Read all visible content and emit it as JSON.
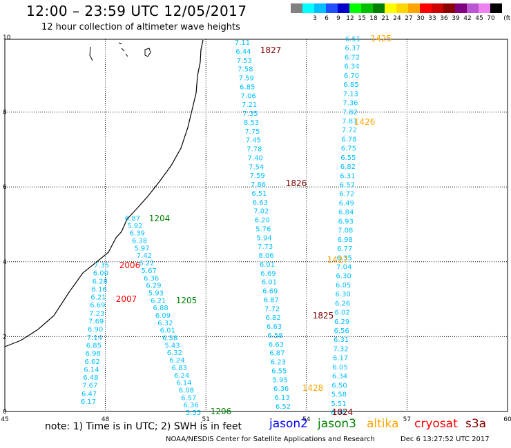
{
  "header": {
    "title": "12:00 – 23:59 UTC 12/05/2017",
    "subtitle": "12 hour collection of altimeter wave heights"
  },
  "legend": {
    "unit": "(ft)",
    "bins": [
      {
        "label": "",
        "color": "#808080"
      },
      {
        "label": "3",
        "color": "#00ffff"
      },
      {
        "label": "6",
        "color": "#00bfff"
      },
      {
        "label": "9",
        "color": "#1f4fff"
      },
      {
        "label": "12",
        "color": "#0000cd"
      },
      {
        "label": "15",
        "color": "#00ff00"
      },
      {
        "label": "18",
        "color": "#00c000"
      },
      {
        "label": "21",
        "color": "#008000"
      },
      {
        "label": "24",
        "color": "#ffff00"
      },
      {
        "label": "27",
        "color": "#ffd700"
      },
      {
        "label": "30",
        "color": "#ffa500"
      },
      {
        "label": "33",
        "color": "#ff0000"
      },
      {
        "label": "36",
        "color": "#cc0000"
      },
      {
        "label": "39",
        "color": "#8b0000"
      },
      {
        "label": "42",
        "color": "#800080"
      },
      {
        "label": "45",
        "color": "#ba55d3"
      },
      {
        "label": "70",
        "color": "#ee82ee"
      },
      {
        "label": "",
        "color": "#000000"
      }
    ]
  },
  "axes": {
    "x_ticks": [
      "45",
      "48",
      "51",
      "54",
      "57",
      "60"
    ],
    "y_ticks": [
      "0",
      "2",
      "4",
      "6",
      "8",
      "10"
    ]
  },
  "colors": {
    "value_text": "#00bfff",
    "jason2": "#0000ff",
    "jason3": "#008000",
    "altika": "#ffa500",
    "cryosat": "#ff0000",
    "s3a": "#800000"
  },
  "tracks": [
    {
      "id": "t1425",
      "x": [
        6.51,
        6.37,
        6.72,
        6.34,
        6.7,
        6.85,
        7.13,
        7.36,
        7.82,
        7.81,
        7.72,
        6.78,
        6.75,
        6.55,
        6.82,
        6.31,
        6.57,
        6.72,
        6.49,
        6.84,
        6.93,
        7.08,
        6.98,
        6.77,
        6.35,
        7.04,
        6.3,
        6.05,
        6.3,
        6.26,
        6.02,
        6.29,
        6.56,
        6.31,
        7.32,
        6.17,
        6.05,
        6.34,
        6.5,
        5.58,
        5.51,
        6.4
      ]
    },
    {
      "id": "t1827",
      "x": [
        7.11,
        6.44,
        7.53,
        7.58,
        7.59,
        6.85,
        7.06,
        7.21,
        7.35,
        8.53,
        7.75,
        7.45,
        7.78,
        7.4,
        7.54,
        7.59,
        7.86,
        6.51,
        6.63,
        7.02,
        6.2,
        5.76,
        5.94,
        7.73,
        8.06,
        6.01,
        6.69,
        6.01,
        6.69,
        6.87,
        7.72,
        6.82,
        6.63,
        6.58,
        6.63,
        6.87,
        6.23,
        6.55,
        5.95,
        6.36,
        6.13,
        6.52
      ]
    },
    {
      "id": "t1204",
      "x": [
        6.87,
        5.92,
        6.39,
        6.38,
        5.97,
        7.42,
        6.22,
        5.67,
        6.36,
        6.29,
        5.93,
        6.21,
        6.88,
        6.09,
        6.32,
        6.01,
        6.58,
        5.43,
        6.32,
        6.24,
        6.83,
        6.24,
        6.14,
        6.08,
        6.57,
        6.36,
        5.55
      ]
    },
    {
      "id": "t2006",
      "x": [
        7.35,
        6.0,
        6.28,
        6.16,
        6.21,
        6.69,
        7.23,
        7.69,
        6.9,
        7.14,
        6.85,
        6.98,
        6.62,
        6.14,
        6.48,
        7.67,
        6.47,
        6.17
      ]
    }
  ],
  "track_labels": [
    {
      "text": "1425",
      "mission": "altika"
    },
    {
      "text": "1827",
      "mission": "s3a"
    },
    {
      "text": "1426",
      "mission": "altika"
    },
    {
      "text": "1826",
      "mission": "s3a"
    },
    {
      "text": "1204",
      "mission": "jason3"
    },
    {
      "text": "2006",
      "mission": "cryosat"
    },
    {
      "text": "1427",
      "mission": "altika"
    },
    {
      "text": "2007",
      "mission": "cryosat"
    },
    {
      "text": "1205",
      "mission": "jason3"
    },
    {
      "text": "1825",
      "mission": "s3a"
    },
    {
      "text": "1428",
      "mission": "altika"
    },
    {
      "text": "1206",
      "mission": "jason3"
    },
    {
      "text": "1824",
      "mission": "s3a"
    }
  ],
  "footer": {
    "note": "note: 1) Time is in UTC; 2) SWH is in feet",
    "missions": [
      "jason2",
      "jason3",
      "altika",
      "cryosat",
      "s3a"
    ],
    "credit": "NOAA/NESDIS Center for Satellite Applications and Research",
    "timestamp": "Dec  6 13:27:52 UTC 2017"
  }
}
